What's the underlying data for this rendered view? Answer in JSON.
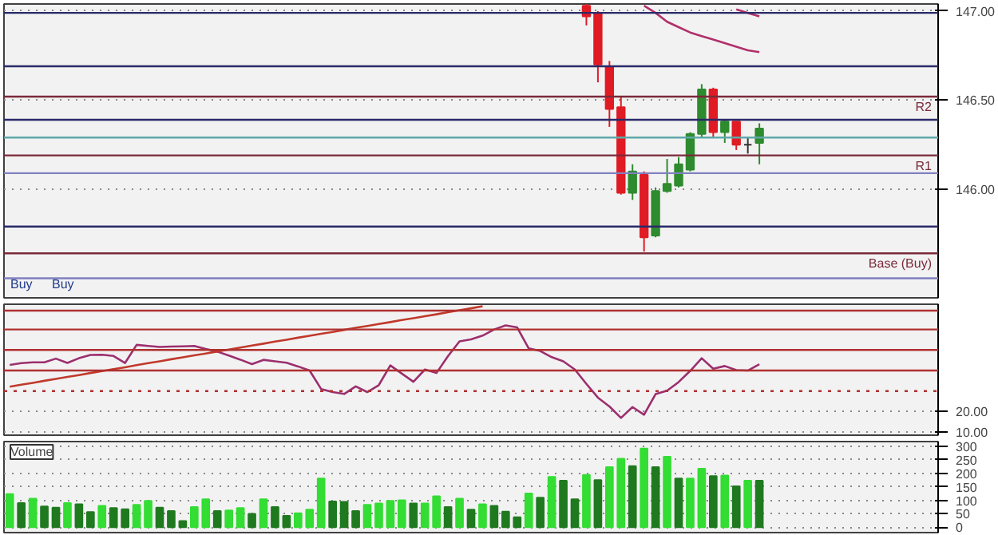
{
  "chart_data": [
    {
      "type": "candlestick",
      "categories": [
        null,
        null,
        null,
        null,
        null,
        null,
        null,
        null,
        null,
        null,
        null,
        null,
        null,
        null,
        null,
        null,
        null,
        null,
        null,
        null,
        null,
        null,
        null,
        null,
        null,
        null,
        null,
        null,
        null,
        null,
        null,
        null,
        null,
        null,
        null,
        null,
        null,
        null,
        null,
        null,
        null,
        null,
        null,
        null,
        null,
        null,
        null,
        null,
        null,
        null,
        null,
        null,
        null,
        null,
        null,
        null,
        null,
        null,
        null,
        null,
        null,
        null,
        null,
        null,
        null,
        null,
        null,
        null,
        null,
        null,
        null,
        null,
        null,
        null,
        null,
        null,
        null,
        null,
        null,
        null,
        null
      ],
      "ohlc": [
        null,
        null,
        null,
        null,
        null,
        null,
        null,
        null,
        null,
        null,
        null,
        null,
        null,
        null,
        null,
        null,
        null,
        null,
        null,
        null,
        null,
        null,
        null,
        null,
        null,
        null,
        null,
        null,
        null,
        null,
        null,
        null,
        null,
        null,
        null,
        null,
        null,
        null,
        null,
        null,
        null,
        null,
        null,
        null,
        null,
        null,
        null,
        null,
        null,
        null,
        [
          147.03,
          147.04,
          146.92,
          146.97
        ],
        [
          146.99,
          147.0,
          146.6,
          146.7
        ],
        [
          146.69,
          146.72,
          146.35,
          146.45
        ],
        [
          146.46,
          146.52,
          145.97,
          145.98
        ],
        [
          145.98,
          146.14,
          145.94,
          146.1
        ],
        [
          146.08,
          146.1,
          145.65,
          145.73
        ],
        [
          145.74,
          146.01,
          145.73,
          145.99
        ],
        [
          145.99,
          146.17,
          145.98,
          146.03
        ],
        [
          146.02,
          146.18,
          146.01,
          146.14
        ],
        [
          146.11,
          146.32,
          146.1,
          146.31
        ],
        [
          146.31,
          146.59,
          146.29,
          146.56
        ],
        [
          146.56,
          146.57,
          146.29,
          146.32
        ],
        [
          146.32,
          146.39,
          146.26,
          146.38
        ],
        [
          146.38,
          146.38,
          146.22,
          146.25
        ],
        [
          146.25,
          146.29,
          146.2,
          146.25
        ],
        [
          146.26,
          146.37,
          146.14,
          146.34
        ],
        null,
        null,
        null,
        null,
        null,
        null,
        null,
        null,
        null,
        null,
        null,
        null,
        null,
        null,
        null
      ],
      "colors": [
        null,
        null,
        null,
        null,
        null,
        null,
        null,
        null,
        null,
        null,
        null,
        null,
        null,
        null,
        null,
        null,
        null,
        null,
        null,
        null,
        null,
        null,
        null,
        null,
        null,
        null,
        null,
        null,
        null,
        null,
        null,
        null,
        null,
        null,
        null,
        null,
        null,
        null,
        null,
        null,
        null,
        null,
        null,
        null,
        null,
        null,
        null,
        null,
        null,
        null,
        "#e01b24",
        "#e01b24",
        "#e01b24",
        "#e01b24",
        "#2e8b2e",
        "#e01b24",
        "#2e8b2e",
        "#2e8b2e",
        "#2e8b2e",
        "#2e8b2e",
        "#2e8b2e",
        "#e01b24",
        "#2e8b2e",
        "#e01b24",
        "#333333",
        "#2e8b2e",
        null,
        null,
        null,
        null,
        null,
        null,
        null,
        null,
        null,
        null,
        null,
        null,
        null,
        null,
        null
      ],
      "series": [
        {
          "type": "line",
          "color": "#b0306a",
          "values": [
            null,
            null,
            null,
            null,
            null,
            null,
            null,
            null,
            null,
            null,
            null,
            null,
            null,
            null,
            null,
            null,
            null,
            null,
            null,
            null,
            null,
            null,
            null,
            null,
            null,
            null,
            null,
            null,
            null,
            null,
            null,
            null,
            null,
            null,
            null,
            null,
            null,
            null,
            null,
            null,
            null,
            null,
            null,
            null,
            null,
            null,
            null,
            null,
            null,
            null,
            null,
            null,
            null,
            null,
            null,
            147.03,
            146.99,
            146.94,
            146.91,
            146.88,
            146.86,
            146.84,
            146.82,
            146.8,
            146.78,
            146.77,
            null,
            null,
            null,
            null,
            null,
            null,
            null,
            null,
            null,
            null,
            null,
            null,
            null,
            null,
            null
          ]
        },
        {
          "type": "line",
          "color": "#b0306a",
          "values": [
            null,
            null,
            null,
            null,
            null,
            null,
            null,
            null,
            null,
            null,
            null,
            null,
            null,
            null,
            null,
            null,
            null,
            null,
            null,
            null,
            null,
            null,
            null,
            null,
            null,
            null,
            null,
            null,
            null,
            null,
            null,
            null,
            null,
            null,
            null,
            null,
            null,
            null,
            null,
            null,
            null,
            null,
            null,
            null,
            null,
            null,
            null,
            null,
            null,
            null,
            null,
            null,
            null,
            null,
            null,
            null,
            null,
            null,
            null,
            null,
            null,
            null,
            null,
            147.01,
            146.99,
            146.97,
            null,
            null,
            null,
            null,
            null,
            null,
            null,
            null,
            null,
            null,
            null,
            null,
            null,
            null,
            null
          ]
        }
      ],
      "ref_lines": [
        {
          "axis": "y",
          "value": 146.99,
          "color": "#2a2a6a"
        },
        {
          "axis": "y",
          "value": 146.69,
          "color": "#2a2a6a"
        },
        {
          "axis": "y",
          "value": 146.39,
          "color": "#2a2a6a"
        },
        {
          "axis": "y",
          "value": 146.29,
          "color": "#5fa8a8"
        },
        {
          "axis": "y",
          "value": 146.09,
          "color": "#8080c0"
        },
        {
          "axis": "y",
          "value": 145.79,
          "color": "#2a2a6a"
        },
        {
          "axis": "y",
          "value": 145.5,
          "color": "#8080c0"
        },
        {
          "axis": "y",
          "value": 146.52,
          "color": "#7a2a3a",
          "label": "R2"
        },
        {
          "axis": "y",
          "value": 146.19,
          "color": "#7a2a3a",
          "label": "R1"
        },
        {
          "axis": "y",
          "value": 145.64,
          "color": "#7a2a3a",
          "label": "Base (Buy)"
        }
      ],
      "annotations": [
        "Buy",
        "Buy"
      ],
      "ylim": [
        145.39,
        147.04
      ],
      "yticks": [
        {
          "value": 146.0,
          "label": "146.00"
        },
        {
          "value": 146.5,
          "label": "146.50"
        },
        {
          "value": 147.0,
          "label": "147.00"
        }
      ],
      "grid": "y",
      "tick_labels": "y"
    },
    {
      "type": "line",
      "color": "#9c2f6e",
      "categories": [
        null,
        null,
        null,
        null,
        null,
        null,
        null,
        null,
        null,
        null,
        null,
        null,
        null,
        null,
        null,
        null,
        null,
        null,
        null,
        null,
        null,
        null,
        null,
        null,
        null,
        null,
        null,
        null,
        null,
        null,
        null,
        null,
        null,
        null,
        null,
        null,
        null,
        null,
        null,
        null,
        null,
        null,
        null,
        null,
        null,
        null,
        null,
        null,
        null,
        null,
        null,
        null,
        null,
        null,
        null,
        null,
        null,
        null,
        null,
        null,
        null,
        null,
        null,
        null,
        null,
        null,
        null,
        null,
        null,
        null,
        null,
        null,
        null,
        null,
        null,
        null,
        null,
        null,
        null,
        null,
        null
      ],
      "values": [
        42.7,
        43.6,
        44,
        44,
        45.8,
        43.7,
        46,
        47.6,
        47.7,
        47.1,
        43.7,
        52.5,
        52,
        51.5,
        51.7,
        51.8,
        52,
        50.5,
        49.2,
        47.3,
        45.3,
        43.1,
        45.2,
        44.5,
        43.8,
        42,
        40,
        31,
        29.5,
        28.6,
        32.3,
        29.5,
        32.9,
        42.5,
        38.5,
        34.5,
        40.5,
        38.8,
        47,
        54.2,
        55.2,
        57,
        60,
        62,
        61,
        50.8,
        49.5,
        46.5,
        44.5,
        40.5,
        33.5,
        26.8,
        22.5,
        16.9,
        22.2,
        18.5,
        28.5,
        30.2,
        34.4,
        39.8,
        46,
        40.9,
        42.2,
        40.2,
        40,
        43.1,
        null,
        null,
        null,
        null,
        null,
        null,
        null,
        null,
        null,
        null,
        null,
        null,
        null,
        null,
        null
      ],
      "series": [
        {
          "type": "line",
          "color": "#c0392b",
          "values": [
            32.1,
            33.1,
            34,
            35,
            35.9,
            36.9,
            37.8,
            38.8,
            39.7,
            40.7,
            41.6,
            42.6,
            43.6,
            44.5,
            45.5,
            46.4,
            47.4,
            48.3,
            49.3,
            50.2,
            51.2,
            52.2,
            53.1,
            54.1,
            55,
            56,
            56.9,
            57.9,
            58.8,
            59.8,
            60.8,
            61.7,
            62.7,
            63.6,
            64.6,
            65.5,
            66.5,
            67.4,
            68.4,
            69.4,
            70.3,
            71.3,
            null,
            null,
            null,
            null,
            null,
            null,
            null,
            null,
            null,
            null,
            null,
            null,
            null,
            null,
            null,
            null,
            null,
            null,
            null,
            null,
            null,
            null,
            null,
            null,
            null,
            null,
            null,
            null,
            null,
            null,
            null,
            null,
            null,
            null,
            null,
            null,
            null,
            null,
            null
          ]
        }
      ],
      "ref_lines": [
        {
          "axis": "y",
          "value": 69.2,
          "color": "#b03030"
        },
        {
          "axis": "y",
          "value": 60,
          "color": "#b03030"
        },
        {
          "axis": "y",
          "value": 50,
          "color": "#b03030"
        },
        {
          "axis": "y",
          "value": 40,
          "color": "#b03030"
        },
        {
          "axis": "y",
          "value": 30,
          "color": "#b03030",
          "line_style": "dotted"
        }
      ],
      "ylim": [
        8.5,
        72.3
      ],
      "yticks": [
        {
          "value": 10,
          "label": "10.00"
        },
        {
          "value": 20,
          "label": "20.00"
        }
      ],
      "grid": "y",
      "tick_labels": "y"
    },
    {
      "type": "bar",
      "title": "Volume",
      "categories": [
        null,
        null,
        null,
        null,
        null,
        null,
        null,
        null,
        null,
        null,
        null,
        null,
        null,
        null,
        null,
        null,
        null,
        null,
        null,
        null,
        null,
        null,
        null,
        null,
        null,
        null,
        null,
        null,
        null,
        null,
        null,
        null,
        null,
        null,
        null,
        null,
        null,
        null,
        null,
        null,
        null,
        null,
        null,
        null,
        null,
        null,
        null,
        null,
        null,
        null,
        null,
        null,
        null,
        null,
        null,
        null,
        null,
        null,
        null,
        null,
        null,
        null,
        null,
        null,
        null,
        null,
        null,
        null,
        null,
        null,
        null,
        null,
        null,
        null,
        null,
        null,
        null,
        null,
        null,
        null,
        null
      ],
      "values": [
        123,
        90,
        106,
        77,
        73,
        90,
        85,
        56,
        79,
        71,
        67,
        83,
        98,
        73,
        60,
        23,
        75,
        104,
        60,
        62,
        71,
        50,
        104,
        75,
        42,
        52,
        65,
        181,
        96,
        94,
        60,
        83,
        88,
        98,
        100,
        88,
        88,
        115,
        75,
        106,
        65,
        85,
        79,
        58,
        37,
        125,
        110,
        187,
        173,
        104,
        194,
        175,
        223,
        254,
        227,
        292,
        223,
        262,
        181,
        181,
        217,
        190,
        192,
        152,
        173,
        173,
        null,
        null,
        null,
        null,
        null,
        null,
        null,
        null,
        null,
        null,
        null,
        null,
        null,
        null,
        null
      ],
      "colors": [
        "#33dd33",
        "#1f7a1f",
        "#33dd33",
        "#1f7a1f",
        "#1f7a1f",
        "#33dd33",
        "#1f7a1f",
        "#1f7a1f",
        "#33dd33",
        "#1f7a1f",
        "#1f7a1f",
        "#33dd33",
        "#33dd33",
        "#1f7a1f",
        "#1f7a1f",
        "#1f7a1f",
        "#33dd33",
        "#33dd33",
        "#1f7a1f",
        "#33dd33",
        "#33dd33",
        "#1f7a1f",
        "#33dd33",
        "#1f7a1f",
        "#1f7a1f",
        "#33dd33",
        "#33dd33",
        "#33dd33",
        "#1f7a1f",
        "#1f7a1f",
        "#1f7a1f",
        "#33dd33",
        "#33dd33",
        "#33dd33",
        "#33dd33",
        "#1f7a1f",
        "#33dd33",
        "#33dd33",
        "#1f7a1f",
        "#33dd33",
        "#1f7a1f",
        "#33dd33",
        "#1f7a1f",
        "#1f7a1f",
        "#1f7a1f",
        "#33dd33",
        "#1f7a1f",
        "#33dd33",
        "#1f7a1f",
        "#1f7a1f",
        "#33dd33",
        "#1f7a1f",
        "#33dd33",
        "#33dd33",
        "#1f7a1f",
        "#33dd33",
        "#1f7a1f",
        "#33dd33",
        "#1f7a1f",
        "#33dd33",
        "#33dd33",
        "#1f7a1f",
        "#33dd33",
        "#1f7a1f",
        "#33dd33",
        "#1f7a1f",
        null,
        null,
        null,
        null,
        null,
        null,
        null,
        null,
        null,
        null,
        null,
        null,
        null,
        null,
        null
      ],
      "ylim": [
        -20,
        318
      ],
      "yticks": [
        0,
        50,
        100,
        150,
        200,
        250,
        300
      ],
      "grid": "y",
      "tick_labels": "y"
    }
  ]
}
